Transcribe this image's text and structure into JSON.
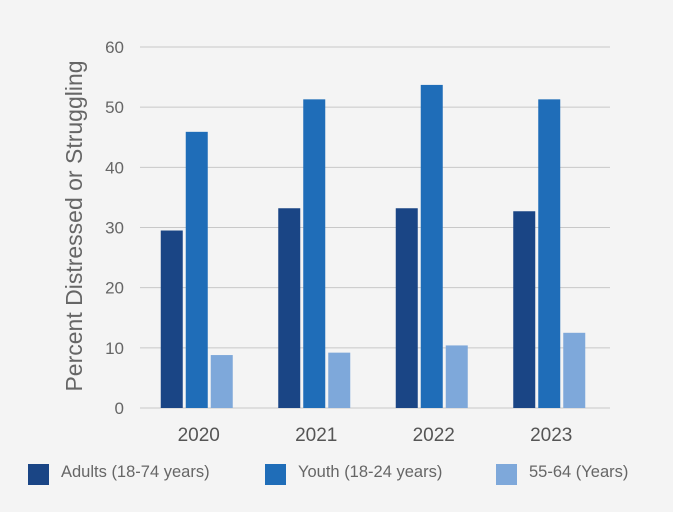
{
  "chart_data": {
    "type": "bar",
    "title": "",
    "xlabel": "",
    "ylabel": "Percent Distressed or Struggling",
    "ylim": [
      0,
      60
    ],
    "yticks": [
      0,
      10,
      20,
      30,
      40,
      50,
      60
    ],
    "grid": true,
    "legend_position": "bottom",
    "categories": [
      "2020",
      "2021",
      "2022",
      "2023"
    ],
    "series": [
      {
        "name": "Adults (18-74 years)",
        "color": "#1a4585",
        "values": [
          29.5,
          33.2,
          33.2,
          32.7
        ]
      },
      {
        "name": "Youth (18-24 years)",
        "color": "#1f6db8",
        "values": [
          45.9,
          51.3,
          53.7,
          51.3
        ]
      },
      {
        "name": "55-64 (Years)",
        "color": "#7ea8da",
        "values": [
          8.8,
          9.2,
          10.4,
          12.5
        ]
      }
    ]
  }
}
